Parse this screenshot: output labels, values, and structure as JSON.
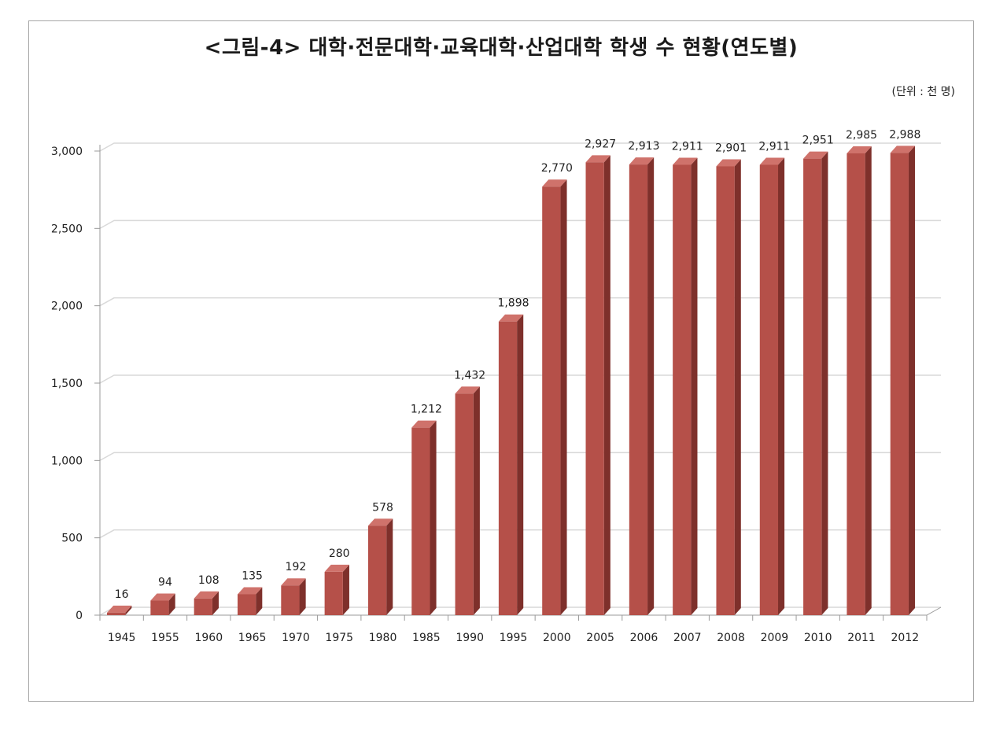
{
  "chart_data": {
    "type": "bar",
    "title": "<그림-4> 대학·전문대학·교육대학·산업대학 학생 수 현황(연도별)",
    "unit_note": "(단위 : 천 명)",
    "categories": [
      "1945",
      "1955",
      "1960",
      "1965",
      "1970",
      "1975",
      "1980",
      "1985",
      "1990",
      "1995",
      "2000",
      "2005",
      "2006",
      "2007",
      "2008",
      "2009",
      "2010",
      "2011",
      "2012"
    ],
    "values": [
      16,
      94,
      108,
      135,
      192,
      280,
      578,
      1212,
      1432,
      1898,
      2770,
      2927,
      2913,
      2911,
      2901,
      2911,
      2951,
      2985,
      2988
    ],
    "value_labels": [
      "16",
      "94",
      "108",
      "135",
      "192",
      "280",
      "578",
      "1,212",
      "1,432",
      "1,898",
      "2,770",
      "2,927",
      "2,913",
      "2,911",
      "2,901",
      "2,911",
      "2,951",
      "2,985",
      "2,988"
    ],
    "y_ticks": [
      0,
      500,
      1000,
      1500,
      2000,
      2500,
      3000
    ],
    "y_tick_labels": [
      "0",
      "500",
      "1,000",
      "1,500",
      "2,000",
      "2,500",
      "3,000"
    ],
    "ylim": [
      0,
      3000
    ],
    "grid": true,
    "style": "3d-column",
    "colors": {
      "bar_front": "#b55049",
      "bar_side": "#7e302b",
      "bar_top": "#cf726b",
      "grid": "#d9d9d9"
    }
  }
}
